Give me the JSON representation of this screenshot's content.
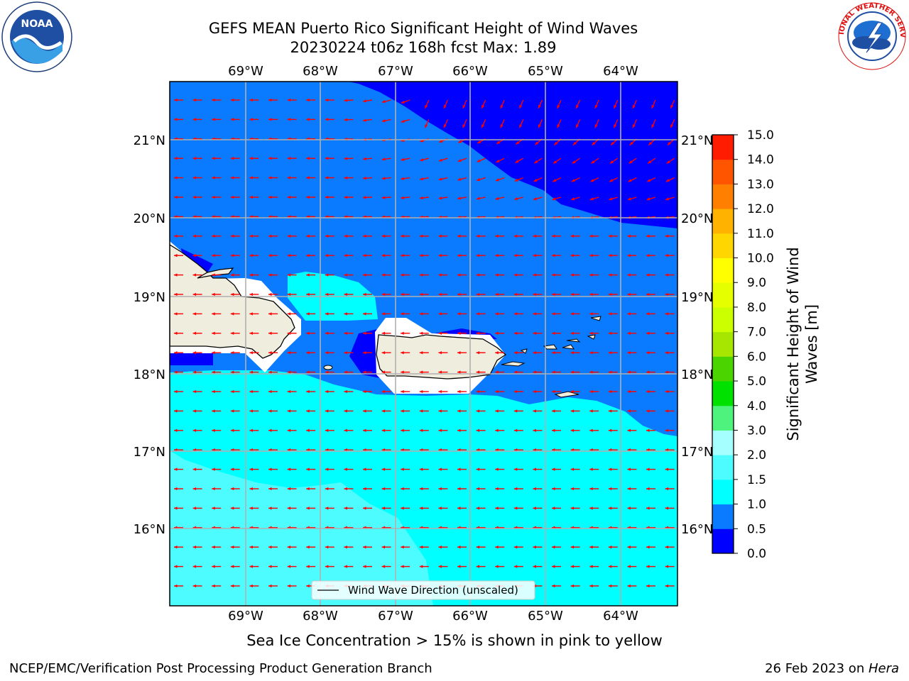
{
  "header": {
    "title_line1": "GEFS MEAN Puerto Rico Significant Height of Wind Waves",
    "title_line2": "20230224 t06z 168h fcst   Max: 1.89"
  },
  "logos": {
    "left": "noaa-logo",
    "left_ring_text": "NATIONAL OCEANIC AND ATMOSPHERIC ADMINISTRATION",
    "left_bottom_text": "U.S. DEPARTMENT OF COMMERCE",
    "left_center": "NOAA",
    "right": "nws-logo",
    "right_ring_text": "NATIONAL WEATHER SERVICE"
  },
  "map": {
    "lon_labels": [
      "69°W",
      "68°W",
      "67°W",
      "66°W",
      "65°W",
      "64°W"
    ],
    "lat_labels": [
      "21°N",
      "20°N",
      "19°N",
      "18°N",
      "17°N",
      "16°N"
    ],
    "legend_label": "Wind Wave Direction (unscaled)",
    "arrow_color": "#ff0000",
    "land_color": "#efedde"
  },
  "colorbar": {
    "label": "Significant Height of Wind Waves [m]",
    "ticks": [
      "0.0",
      "0.5",
      "1.0",
      "1.5",
      "2.0",
      "3.0",
      "4.0",
      "5.0",
      "6.0",
      "7.0",
      "8.0",
      "9.0",
      "10.0",
      "11.0",
      "12.0",
      "13.0",
      "14.0",
      "15.0"
    ],
    "colors": [
      "#0000ff",
      "#0a7bff",
      "#00ffff",
      "#4dfcff",
      "#a5ffff",
      "#4ef37e",
      "#00e100",
      "#4bd400",
      "#a6e600",
      "#ccff00",
      "#e6ff00",
      "#ffff00",
      "#ffd600",
      "#ffb300",
      "#ff8000",
      "#ff5400",
      "#ff1c00"
    ]
  },
  "caption": "Sea Ice Concentration > 15% is shown in pink to yellow",
  "footer": {
    "left": "NCEP/EMC/Verification Post Processing Product Generation Branch",
    "right_prefix": "26 Feb 2023 on ",
    "right_host": "Hera"
  }
}
